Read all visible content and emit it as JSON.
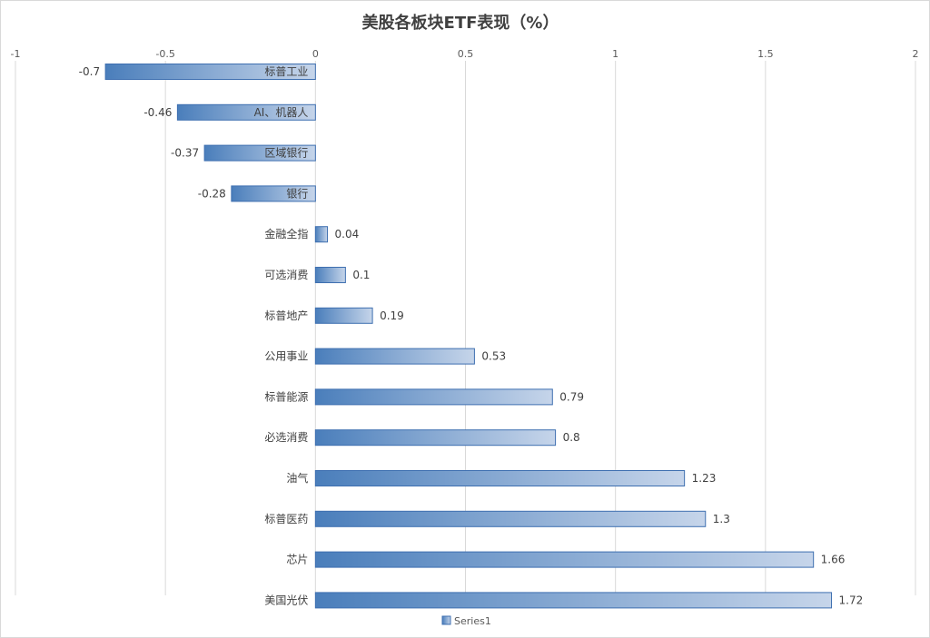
{
  "chart_data": {
    "type": "bar",
    "orientation": "horizontal",
    "title": "美股各板块ETF表现（%）",
    "categories": [
      "标普工业",
      "AI、机器人",
      "区域银行",
      "银行",
      "金融全指",
      "可选消费",
      "标普地产",
      "公用事业",
      "标普能源",
      "必选消费",
      "油气",
      "标普医药",
      "芯片",
      "美国光伏"
    ],
    "series": [
      {
        "name": "Series1",
        "values": [
          -0.7,
          -0.46,
          -0.37,
          -0.28,
          0.04,
          0.1,
          0.19,
          0.53,
          0.79,
          0.8,
          1.23,
          1.3,
          1.66,
          1.72
        ]
      }
    ],
    "value_labels": [
      "-0.7",
      "-0.46",
      "-0.37",
      "-0.28",
      "0.04",
      "0.1",
      "0.19",
      "0.53",
      "0.79",
      "0.8",
      "1.23",
      "1.3",
      "1.66",
      "1.72"
    ],
    "xlim": [
      -1,
      2
    ],
    "xticks": [
      -1,
      -0.5,
      0,
      0.5,
      1,
      1.5,
      2
    ],
    "xtick_labels": [
      "-1",
      "-0.5",
      "0",
      "0.5",
      "1",
      "1.5",
      "2"
    ],
    "axis_position": "top",
    "grid": true,
    "legend": {
      "position": "bottom",
      "entries": [
        "Series1"
      ]
    },
    "colors": {
      "bar_dark": "#4a7ebb",
      "bar_light": "#c6d5ea",
      "bar_border": "#3e6fb0",
      "grid": "#d9d9d9"
    }
  }
}
